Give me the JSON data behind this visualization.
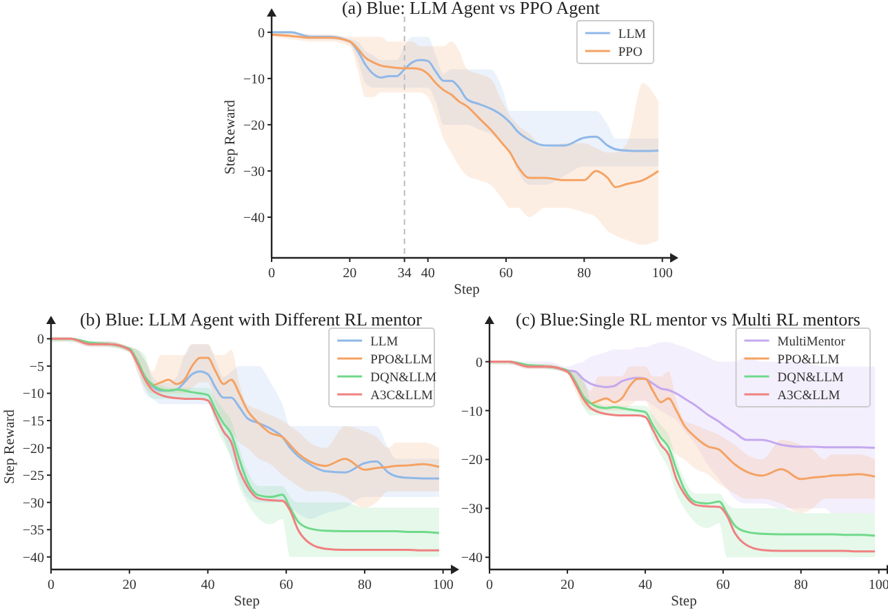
{
  "chart_data": [
    {
      "type": "line",
      "title": "(a) Blue: LLM Agent vs PPO Agent",
      "xlabel": "Step",
      "ylabel": "Step Reward",
      "xlim": [
        0,
        102
      ],
      "ylim": [
        -48.8,
        3.4
      ],
      "xticks": [
        0,
        20,
        34,
        40,
        60,
        80,
        100
      ],
      "yticks": [
        0,
        -10,
        -20,
        -30,
        -40
      ],
      "grid": false,
      "legend": "top right",
      "ref_lines": [
        {
          "axis": "x",
          "value": 34,
          "color": "#bbbbbb",
          "line_style": "dashed"
        }
      ],
      "x": [
        0,
        5,
        10,
        15,
        20,
        22,
        24,
        26,
        28,
        30,
        32,
        34,
        36,
        38,
        40,
        42,
        44,
        46,
        48,
        50,
        53,
        56,
        59,
        61,
        63,
        66,
        70,
        75,
        80,
        83,
        86,
        88,
        91,
        95,
        99
      ],
      "series": [
        {
          "name": "LLM",
          "color": "#8fb8e8",
          "values": [
            0,
            0,
            -1,
            -1,
            -2,
            -4,
            -7,
            -9,
            -9.8,
            -9.5,
            -9.5,
            -8,
            -6.5,
            -6,
            -6.2,
            -8.5,
            -10.5,
            -10.5,
            -12,
            -14.5,
            -15.5,
            -16.5,
            -18,
            -19.5,
            -21.5,
            -23.3,
            -24.5,
            -24.5,
            -22.8,
            -22.6,
            -24.5,
            -25.3,
            -25.6,
            -25.7,
            -25.6
          ],
          "lower": [
            -0.5,
            -0.5,
            -1.5,
            -1.5,
            -2.5,
            -6,
            -11,
            -12,
            -12,
            -12,
            -12,
            -12,
            -12,
            -12,
            -12,
            -15,
            -20,
            -20,
            -20,
            -20,
            -21,
            -22,
            -24,
            -26,
            -30,
            -33,
            -33,
            -31,
            -29,
            -29,
            -29,
            -29,
            -29,
            -29,
            -29
          ],
          "upper": [
            0,
            0,
            -0.5,
            -0.5,
            -1.5,
            -2,
            -4,
            -5,
            -6,
            -6,
            -6,
            -3,
            -1,
            -1,
            -1,
            -5,
            -9,
            -8,
            -8,
            -8,
            -8,
            -8,
            -12,
            -17,
            -17,
            -17,
            -17,
            -17,
            -17,
            -17,
            -20,
            -23,
            -23,
            -23,
            -23
          ]
        },
        {
          "name": "PPO",
          "color": "#f5a263",
          "values": [
            -0.5,
            -0.8,
            -1.2,
            -1.2,
            -2,
            -3.5,
            -5.5,
            -6.5,
            -7.2,
            -7.5,
            -7.7,
            -7.8,
            -7.8,
            -8,
            -9,
            -11,
            -12.5,
            -13.5,
            -15,
            -16,
            -18.5,
            -21,
            -24,
            -26,
            -29,
            -31.5,
            -31.5,
            -32,
            -32,
            -30,
            -31.5,
            -33.5,
            -32.8,
            -32,
            -30
          ],
          "lower": [
            -1,
            -1.5,
            -2,
            -2,
            -3,
            -8,
            -14,
            -14,
            -13,
            -13,
            -13,
            -13,
            -13,
            -13,
            -14,
            -18,
            -23,
            -26,
            -29,
            -31,
            -32,
            -33,
            -36,
            -38,
            -38,
            -40,
            -38,
            -38,
            -39,
            -40,
            -43,
            -44,
            -45,
            -46,
            -45
          ],
          "upper": [
            0,
            0,
            -0.5,
            -0.5,
            -1,
            -1,
            -1,
            -1,
            -1,
            -2,
            -2,
            -2,
            -2,
            -3,
            -3,
            -3,
            -3,
            -2,
            -4,
            -8,
            -9,
            -10,
            -15,
            -18,
            -20,
            -22,
            -25,
            -24,
            -24,
            -25,
            -26,
            -26,
            -24,
            -11,
            -15
          ]
        }
      ]
    },
    {
      "type": "line",
      "title": "(b) Blue: LLM Agent with Different RL mentor",
      "xlabel": "Step",
      "ylabel": "Step Reward",
      "xlim": [
        0,
        102
      ],
      "ylim": [
        -42.3,
        2.7
      ],
      "xticks": [
        0,
        20,
        40,
        60,
        80,
        100
      ],
      "yticks": [
        0,
        -5,
        -10,
        -15,
        -20,
        -25,
        -30,
        -35,
        -40
      ],
      "grid": false,
      "legend": "top right",
      "x": [
        0,
        5,
        10,
        15,
        20,
        22,
        24,
        26,
        28,
        30,
        32,
        34,
        36,
        38,
        40,
        42,
        44,
        46,
        48,
        50,
        53,
        56,
        59,
        61,
        63,
        66,
        70,
        75,
        80,
        83,
        86,
        88,
        91,
        95,
        99
      ],
      "series": [
        {
          "name": "LLM",
          "color": "#8fb8e8",
          "values": [
            null,
            null,
            null,
            null,
            null,
            null,
            -7,
            -8.8,
            -9.5,
            -9.5,
            -9.3,
            -8,
            -6.5,
            -6,
            -6.5,
            -9,
            -10.8,
            -10.8,
            -12.5,
            -14.5,
            -15.5,
            -16.5,
            -18,
            -20,
            -21.5,
            -23,
            -24.3,
            -24.5,
            -22.8,
            -22.5,
            -24.5,
            -25.2,
            -25.5,
            -25.6,
            -25.6
          ],
          "lower": [
            -0.5,
            -0.5,
            -1.5,
            -1.5,
            -2.5,
            -6,
            -10,
            -11,
            -12,
            -12,
            -12,
            -12,
            -12,
            -12,
            -12,
            -15,
            -18,
            -22,
            -26,
            -29,
            -30,
            -30,
            -30,
            -31,
            -32,
            -33,
            -32,
            -31,
            -29,
            -29,
            -29,
            -29,
            -29,
            -29,
            -29
          ],
          "upper": [
            0,
            0,
            -0.5,
            -0.5,
            -1.5,
            -2,
            -4,
            -7,
            -8,
            -8,
            -7,
            -3,
            -1,
            -1,
            -1,
            -4,
            -7,
            -6,
            -5,
            -5,
            -5,
            -8,
            -12,
            -16,
            -16,
            -16,
            -16,
            -16,
            -16,
            -16,
            -20,
            -22,
            -22,
            -22,
            -22
          ]
        },
        {
          "name": "PPO&LLM",
          "color": "#f5a263",
          "values": [
            0,
            0,
            -1,
            -1,
            -2,
            -4,
            -7,
            -8.5,
            -8,
            -7.5,
            -8.3,
            -7.5,
            -5,
            -3.5,
            -3.5,
            -6,
            -8.3,
            -7.5,
            -10,
            -13,
            -15.5,
            -17.3,
            -18,
            -19.5,
            -21,
            -22.5,
            -23.3,
            -22,
            -24,
            -23.7,
            -23.5,
            -23.3,
            -23.2,
            -23,
            -23.5
          ],
          "lower": [
            -0.5,
            -0.5,
            -1.5,
            -1.5,
            -2.5,
            -6,
            -9,
            -10,
            -10,
            -10,
            -10,
            -10,
            -9,
            -8,
            -8,
            -12,
            -15,
            -17,
            -19,
            -20,
            -22,
            -23,
            -25,
            -26,
            -27,
            -28,
            -28,
            -29,
            -31,
            -30,
            -28,
            -28,
            -28,
            -28,
            -28
          ],
          "upper": [
            0,
            0,
            -0.5,
            -0.5,
            -1.5,
            -2,
            -4,
            -6,
            -3,
            -3,
            -3,
            -3,
            -1,
            -1,
            -1,
            -3,
            -3,
            -2,
            -8,
            -12,
            -13,
            -14,
            -15,
            -16,
            -17,
            -19,
            -20,
            -16,
            -17,
            -18,
            -20,
            -19,
            -19,
            -19,
            -20
          ]
        },
        {
          "name": "DQN&LLM",
          "color": "#6fd98a",
          "values": [
            0,
            0,
            -0.7,
            -1,
            -1.8,
            -4,
            -7,
            -8.5,
            -9.3,
            -9.5,
            -9.3,
            -9.5,
            -9.8,
            -10,
            -10.3,
            -13,
            -15.5,
            -17.5,
            -22,
            -26,
            -28.7,
            -29,
            -28.6,
            -31,
            -33.5,
            -34.8,
            -35.2,
            -35.3,
            -35.3,
            -35.3,
            -35.3,
            -35.3,
            -35.4,
            -35.4,
            -35.6
          ],
          "lower": [
            -0.5,
            -0.5,
            -1,
            -1.5,
            -2.5,
            -5,
            -9,
            -11,
            -11,
            -11,
            -11,
            -11,
            -11,
            -11,
            -11,
            -16,
            -19,
            -22,
            -27,
            -30,
            -33,
            -34,
            -33,
            -40,
            -40,
            -40,
            -40,
            -40,
            -40,
            -40,
            -40,
            -40,
            -40,
            -40,
            -40
          ],
          "upper": [
            0,
            0,
            -0.5,
            -0.5,
            -1.5,
            -2,
            -3,
            -8,
            -8.5,
            -9,
            -9,
            -9,
            -9,
            -9,
            -9,
            -11,
            -13,
            -15,
            -20,
            -24,
            -27,
            -27,
            -27,
            -29,
            -30,
            -30,
            -30,
            -30,
            -31,
            -31,
            -31,
            -31,
            -31,
            -31,
            -31
          ]
        },
        {
          "name": "A3C&LLM",
          "color": "#f08080",
          "values": [
            0,
            0,
            -1,
            -1,
            -2,
            -4.5,
            -7.5,
            -9.5,
            -10.3,
            -10.7,
            -10.9,
            -11,
            -11,
            -11,
            -11.3,
            -14,
            -17,
            -19,
            -24,
            -27,
            -29.3,
            -29.6,
            -29.7,
            -31.5,
            -35,
            -37.5,
            -38.5,
            -38.7,
            -38.7,
            -38.7,
            -38.7,
            -38.7,
            -38.7,
            -38.8,
            -38.8
          ]
        }
      ]
    },
    {
      "type": "line",
      "title": "(c) Blue:Single RL mentor vs Multi RL mentors",
      "xlabel": "Step",
      "xlim": [
        0,
        102
      ],
      "ylim": [
        -42.5,
        7.7
      ],
      "xticks": [
        0,
        20,
        40,
        60,
        80,
        100
      ],
      "yticks": [
        0,
        -10,
        -20,
        -30,
        -40
      ],
      "grid": false,
      "legend": "top right",
      "x": [
        0,
        5,
        10,
        15,
        20,
        22,
        24,
        26,
        28,
        30,
        32,
        34,
        36,
        38,
        40,
        42,
        44,
        46,
        48,
        50,
        53,
        56,
        59,
        61,
        63,
        66,
        70,
        75,
        80,
        83,
        86,
        88,
        91,
        95,
        99
      ],
      "series": [
        {
          "name": "MultiMentor",
          "color": "#c4a8f0",
          "values": [
            0,
            0,
            -1,
            -1,
            -1.8,
            -2,
            -3.5,
            -4.5,
            -5,
            -5.2,
            -5,
            -4,
            -3.5,
            -3.3,
            -3.5,
            -4.5,
            -5.5,
            -5.8,
            -6.5,
            -7.5,
            -9,
            -10.8,
            -12.3,
            -13.5,
            -14.5,
            -16,
            -16,
            -17,
            -17.4,
            -17.4,
            -17.5,
            -17.5,
            -17.5,
            -17.5,
            -17.6
          ],
          "lower": [
            -0.5,
            -0.5,
            -1.5,
            -1.5,
            -2,
            -5,
            -7,
            -8,
            -8,
            -8,
            -8,
            -8,
            -8,
            -8,
            -8,
            -9,
            -10,
            -11,
            -12,
            -14,
            -17,
            -21,
            -24,
            -26,
            -28,
            -29,
            -29,
            -30,
            -30,
            -30,
            -30,
            -31,
            -31,
            -31,
            -31
          ],
          "upper": [
            0,
            0,
            0,
            0,
            -1,
            -0.5,
            0,
            1,
            1.5,
            2,
            2.5,
            2.5,
            2.5,
            3,
            3,
            3.5,
            4,
            4,
            3.5,
            3,
            2,
            1,
            0,
            0,
            0,
            1,
            0,
            0,
            0,
            -0.5,
            -1,
            -1,
            -1,
            -1,
            -1
          ]
        },
        {
          "name": "PPO&LLM",
          "color": "#f5a263",
          "values": [
            0,
            0,
            -1,
            -1,
            -2,
            -4,
            -7,
            -8.5,
            -8,
            -7.5,
            -8.3,
            -7.5,
            -5,
            -3.5,
            -3.5,
            -6,
            -8.3,
            -7.5,
            -10,
            -13,
            -15.5,
            -17.3,
            -18,
            -19.5,
            -21,
            -22.5,
            -23.3,
            -22,
            -24,
            -23.7,
            -23.5,
            -23.3,
            -23.2,
            -23,
            -23.5
          ],
          "lower": [
            -0.5,
            -0.5,
            -1.5,
            -1.5,
            -2.5,
            -6,
            -9,
            -10,
            -10,
            -10,
            -10,
            -10,
            -9,
            -8,
            -8,
            -12,
            -15,
            -17,
            -19,
            -20,
            -22,
            -23,
            -25,
            -26,
            -27,
            -28,
            -28,
            -29,
            -31,
            -30,
            -28,
            -28,
            -28,
            -28,
            -28
          ],
          "upper": [
            0,
            0,
            -0.5,
            -0.5,
            -1.5,
            -2,
            -4,
            -6,
            -3,
            -3,
            -3,
            -3,
            -1,
            -1,
            -1,
            -3,
            -3,
            -2,
            -8,
            -12,
            -13,
            -14,
            -15,
            -16,
            -17,
            -19,
            -20,
            -16,
            -17,
            -18,
            -20,
            -19,
            -19,
            -19,
            -20
          ]
        },
        {
          "name": "DQN&LLM",
          "color": "#6fd98a",
          "values": [
            0,
            0,
            -0.7,
            -1,
            -1.8,
            -4,
            -7,
            -8.5,
            -9.3,
            -9.5,
            -9.3,
            -9.5,
            -9.8,
            -10,
            -10.3,
            -13,
            -15.5,
            -17.5,
            -22,
            -26,
            -28.7,
            -29,
            -28.6,
            -31,
            -33.5,
            -34.8,
            -35.2,
            -35.3,
            -35.3,
            -35.3,
            -35.3,
            -35.3,
            -35.4,
            -35.4,
            -35.6
          ],
          "lower": [
            -0.5,
            -0.5,
            -1,
            -1.5,
            -2.5,
            -5,
            -9,
            -11,
            -11,
            -11,
            -11,
            -11,
            -11,
            -11,
            -11,
            -16,
            -19,
            -22,
            -27,
            -30,
            -33,
            -34,
            -33,
            -40,
            -40,
            -40,
            -40,
            -40,
            -40,
            -40,
            -40,
            -40,
            -40,
            -40,
            -40
          ],
          "upper": [
            0,
            0,
            -0.5,
            -0.5,
            -1.5,
            -2,
            -3,
            -8,
            -8.5,
            -9,
            -9,
            -9,
            -9,
            -9,
            -9,
            -11,
            -13,
            -15,
            -20,
            -24,
            -27,
            -27,
            -27,
            -29,
            -30,
            -30,
            -30,
            -30,
            -31,
            -31,
            -31,
            -31,
            -31,
            -31,
            -31
          ]
        },
        {
          "name": "A3C&LLM",
          "color": "#f08080",
          "values": [
            0,
            0,
            -1,
            -1,
            -2,
            -4.5,
            -7.5,
            -9.5,
            -10.3,
            -10.7,
            -10.9,
            -11,
            -11,
            -11,
            -11.3,
            -14,
            -17,
            -19,
            -24,
            -27,
            -29.3,
            -29.6,
            -29.7,
            -31.5,
            -35,
            -37.5,
            -38.5,
            -38.7,
            -38.7,
            -38.7,
            -38.7,
            -38.7,
            -38.7,
            -38.8,
            -38.8
          ]
        }
      ]
    }
  ]
}
